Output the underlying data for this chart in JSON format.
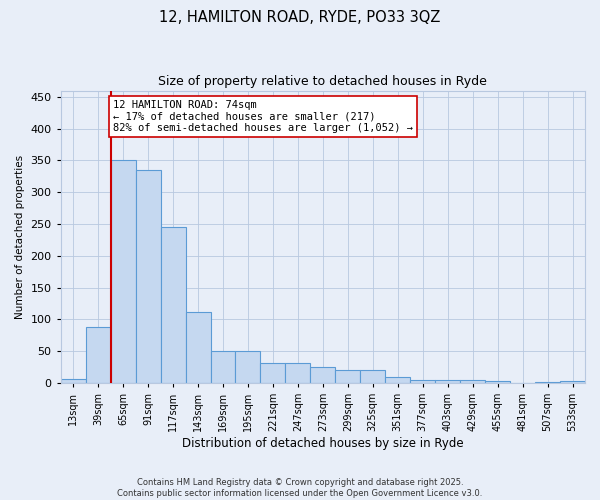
{
  "title1": "12, HAMILTON ROAD, RYDE, PO33 3QZ",
  "title2": "Size of property relative to detached houses in Ryde",
  "xlabel": "Distribution of detached houses by size in Ryde",
  "ylabel": "Number of detached properties",
  "bar_values": [
    6,
    88,
    350,
    335,
    246,
    112,
    50,
    50,
    32,
    32,
    25,
    20,
    20,
    10,
    5,
    5,
    5,
    3,
    0,
    2,
    3
  ],
  "bin_labels": [
    "13sqm",
    "39sqm",
    "65sqm",
    "91sqm",
    "117sqm",
    "143sqm",
    "169sqm",
    "195sqm",
    "221sqm",
    "247sqm",
    "273sqm",
    "299sqm",
    "325sqm",
    "351sqm",
    "377sqm",
    "403sqm",
    "429sqm",
    "455sqm",
    "481sqm",
    "507sqm",
    "533sqm"
  ],
  "bar_color": "#c5d8f0",
  "bar_edge_color": "#5b9bd5",
  "vline_color": "#cc0000",
  "annotation_text": "12 HAMILTON ROAD: 74sqm\n← 17% of detached houses are smaller (217)\n82% of semi-detached houses are larger (1,052) →",
  "annotation_box_color": "white",
  "annotation_box_edge": "#cc0000",
  "ylim": [
    0,
    460
  ],
  "yticks": [
    0,
    50,
    100,
    150,
    200,
    250,
    300,
    350,
    400,
    450
  ],
  "footer": "Contains HM Land Registry data © Crown copyright and database right 2025.\nContains public sector information licensed under the Open Government Licence v3.0.",
  "bg_color": "#e8eef8",
  "plot_bg_color": "#e8eef8",
  "grid_color": "#b8c8e0",
  "title_fontsize": 10.5,
  "subtitle_fontsize": 9
}
